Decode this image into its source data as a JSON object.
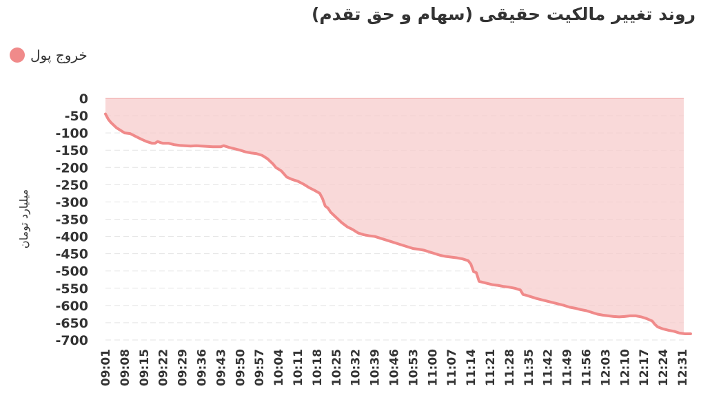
{
  "header": {
    "title": "روند تغییر مالکیت حقیقی (سهام و حق تقدم)"
  },
  "legend": {
    "label": "خروج پول",
    "color": "#f08a8a"
  },
  "colors": {
    "line": "#f08a8a",
    "fill": "#f7cccc",
    "grid": "#e3e3e3",
    "text": "#333333"
  },
  "chart_data": {
    "type": "area",
    "title": "روند تغییر مالکیت حقیقی (سهام و حق تقدم)",
    "ylabel": "میلیارد تومان",
    "xlabel": "",
    "ylim": [
      -700,
      0
    ],
    "yticks": [
      0,
      -50,
      -100,
      -150,
      -200,
      -250,
      -300,
      -350,
      -400,
      -450,
      -500,
      -550,
      -600,
      -650,
      -700
    ],
    "grid": true,
    "legend_position": "top-left",
    "xticks": [
      "09:01",
      "09:08",
      "09:15",
      "09:22",
      "09:29",
      "09:36",
      "09:43",
      "09:50",
      "09:57",
      "10:04",
      "10:11",
      "10:18",
      "10:25",
      "10:32",
      "10:39",
      "10:46",
      "10:53",
      "11:00",
      "11:07",
      "11:14",
      "11:21",
      "11:28",
      "11:35",
      "11:42",
      "11:49",
      "11:56",
      "12:03",
      "12:10",
      "12:17",
      "12:24",
      "12:31"
    ],
    "series": [
      {
        "name": "خروج پول",
        "x": [
          "09:01",
          "09:02",
          "09:03",
          "09:05",
          "09:07",
          "09:08",
          "09:10",
          "09:12",
          "09:14",
          "09:16",
          "09:18",
          "09:19",
          "09:20",
          "09:21",
          "09:22",
          "09:24",
          "09:26",
          "09:28",
          "09:30",
          "09:32",
          "09:34",
          "09:36",
          "09:38",
          "09:40",
          "09:42",
          "09:43",
          "09:44",
          "09:46",
          "09:48",
          "09:50",
          "09:52",
          "09:54",
          "09:56",
          "09:58",
          "10:00",
          "10:02",
          "10:03",
          "10:04",
          "10:05",
          "10:07",
          "10:09",
          "10:11",
          "10:13",
          "10:15",
          "10:17",
          "10:19",
          "10:20",
          "10:21",
          "10:22",
          "10:23",
          "10:25",
          "10:27",
          "10:29",
          "10:31",
          "10:33",
          "10:35",
          "10:37",
          "10:39",
          "10:41",
          "10:43",
          "10:45",
          "10:47",
          "10:49",
          "10:51",
          "10:53",
          "10:55",
          "10:57",
          "10:59",
          "11:01",
          "11:03",
          "11:05",
          "11:07",
          "11:09",
          "11:11",
          "11:13",
          "11:14",
          "11:15",
          "11:16",
          "11:17",
          "11:18",
          "11:20",
          "11:22",
          "11:24",
          "11:26",
          "11:28",
          "11:30",
          "11:32",
          "11:33",
          "11:34",
          "11:36",
          "11:38",
          "11:40",
          "11:42",
          "11:44",
          "11:46",
          "11:48",
          "11:50",
          "11:52",
          "11:54",
          "11:56",
          "11:58",
          "12:00",
          "12:02",
          "12:04",
          "12:06",
          "12:08",
          "12:10",
          "12:12",
          "12:14",
          "12:16",
          "12:18",
          "12:20",
          "12:21",
          "12:22",
          "12:24",
          "12:26",
          "12:28",
          "12:30",
          "12:32",
          "12:34"
        ],
        "values": [
          -45,
          -60,
          -70,
          -85,
          -95,
          -100,
          -102,
          -110,
          -118,
          -125,
          -130,
          -130,
          -125,
          -128,
          -130,
          -130,
          -134,
          -136,
          -137,
          -138,
          -137,
          -138,
          -139,
          -140,
          -140,
          -140,
          -137,
          -142,
          -146,
          -150,
          -155,
          -158,
          -160,
          -165,
          -175,
          -190,
          -200,
          -205,
          -210,
          -228,
          -235,
          -240,
          -248,
          -258,
          -266,
          -275,
          -290,
          -312,
          -318,
          -330,
          -345,
          -360,
          -372,
          -380,
          -390,
          -395,
          -398,
          -400,
          -405,
          -410,
          -415,
          -420,
          -425,
          -430,
          -435,
          -437,
          -440,
          -445,
          -450,
          -455,
          -458,
          -460,
          -462,
          -465,
          -470,
          -480,
          -502,
          -505,
          -530,
          -532,
          -536,
          -540,
          -542,
          -545,
          -547,
          -550,
          -555,
          -568,
          -570,
          -575,
          -580,
          -584,
          -588,
          -592,
          -596,
          -600,
          -605,
          -608,
          -612,
          -615,
          -620,
          -625,
          -628,
          -630,
          -632,
          -633,
          -632,
          -630,
          -630,
          -633,
          -638,
          -645,
          -655,
          -662,
          -668,
          -672,
          -675,
          -680,
          -682,
          -682
        ]
      }
    ]
  }
}
